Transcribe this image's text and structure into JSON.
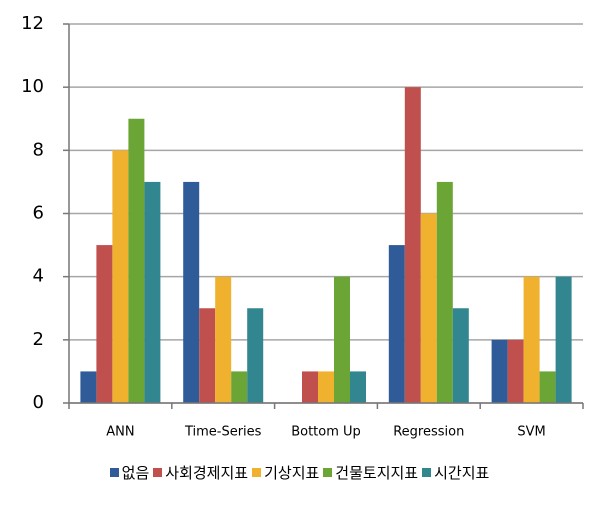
{
  "chart_data": {
    "type": "bar",
    "categories": [
      "ANN",
      "Time-Series",
      "Bottom Up",
      "Regression",
      "SVM"
    ],
    "series": [
      {
        "name": "없음",
        "color": "#2f5c99",
        "values": [
          1,
          7,
          0,
          5,
          2
        ]
      },
      {
        "name": "사회경제지표",
        "color": "#c0504d",
        "values": [
          5,
          3,
          1,
          10,
          2
        ]
      },
      {
        "name": "기상지표",
        "color": "#f0b12e",
        "values": [
          8,
          4,
          1,
          6,
          4
        ]
      },
      {
        "name": "건물토지지표",
        "color": "#6aa535",
        "values": [
          9,
          1,
          4,
          7,
          1
        ]
      },
      {
        "name": "시간지표",
        "color": "#31868f",
        "values": [
          7,
          3,
          1,
          3,
          4
        ]
      }
    ],
    "ylim": [
      0,
      12
    ],
    "yticks": [
      0,
      2,
      4,
      6,
      8,
      10,
      12
    ],
    "grid": true,
    "legend": "bottom"
  }
}
